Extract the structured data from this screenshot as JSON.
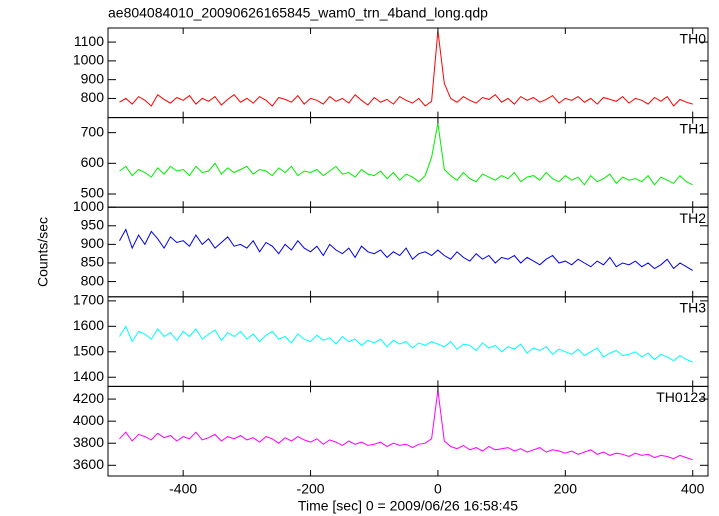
{
  "chart_data": {
    "type": "line",
    "title": "ae804084010_20090626165845_wam0_trn_4band_long.qdp",
    "xlabel": "Time [sec] 0 = 2009/06/26 16:58:45",
    "ylabel": "Counts/sec",
    "xlim": [
      -518,
      424
    ],
    "xticks": [
      -400,
      -200,
      0,
      200,
      400
    ],
    "x": [
      -500,
      -490,
      -480,
      -470,
      -460,
      -450,
      -440,
      -430,
      -420,
      -410,
      -400,
      -390,
      -380,
      -370,
      -360,
      -350,
      -340,
      -330,
      -320,
      -310,
      -300,
      -290,
      -280,
      -270,
      -260,
      -250,
      -240,
      -230,
      -220,
      -210,
      -200,
      -190,
      -180,
      -170,
      -160,
      -150,
      -140,
      -130,
      -120,
      -110,
      -100,
      -90,
      -80,
      -70,
      -60,
      -50,
      -40,
      -30,
      -20,
      -10,
      0,
      10,
      20,
      30,
      40,
      50,
      60,
      70,
      80,
      90,
      100,
      110,
      120,
      130,
      140,
      150,
      160,
      170,
      180,
      190,
      200,
      210,
      220,
      230,
      240,
      250,
      260,
      270,
      280,
      290,
      300,
      310,
      320,
      330,
      340,
      350,
      360,
      370,
      380,
      390,
      400
    ],
    "series": [
      {
        "name": "TH0",
        "color": "#ff0000",
        "ylim": [
          698,
          1175
        ],
        "yticks": [
          800,
          900,
          1000,
          1100
        ],
        "values": [
          780,
          800,
          770,
          810,
          790,
          760,
          820,
          795,
          775,
          805,
          790,
          815,
          770,
          800,
          785,
          810,
          765,
          795,
          820,
          780,
          800,
          775,
          810,
          790,
          760,
          805,
          795,
          780,
          815,
          770,
          800,
          790,
          770,
          810,
          785,
          800,
          775,
          820,
          790,
          765,
          805,
          780,
          795,
          770,
          810,
          790,
          775,
          800,
          760,
          785,
          1160,
          880,
          800,
          780,
          810,
          790,
          775,
          805,
          795,
          820,
          780,
          800,
          770,
          810,
          790,
          805,
          780,
          795,
          815,
          775,
          800,
          790,
          810,
          780,
          800,
          770,
          805,
          795,
          785,
          810,
          775,
          800,
          790,
          770,
          805,
          785,
          810,
          760,
          795,
          780,
          770
        ]
      },
      {
        "name": "TH1",
        "color": "#00ee00",
        "ylim": [
          457,
          749
        ],
        "yticks": [
          500,
          600,
          700
        ],
        "values": [
          575,
          590,
          560,
          580,
          570,
          555,
          585,
          565,
          590,
          575,
          580,
          560,
          590,
          570,
          575,
          600,
          565,
          585,
          570,
          580,
          590,
          565,
          580,
          575,
          560,
          585,
          570,
          590,
          560,
          575,
          570,
          580,
          560,
          575,
          590,
          565,
          570,
          555,
          580,
          565,
          560,
          575,
          550,
          570,
          545,
          565,
          555,
          540,
          560,
          620,
          730,
          580,
          560,
          545,
          570,
          550,
          540,
          565,
          555,
          545,
          560,
          550,
          570,
          540,
          555,
          560,
          545,
          570,
          550,
          540,
          560,
          545,
          555,
          530,
          560,
          540,
          550,
          565,
          535,
          555,
          545,
          550,
          540,
          560,
          530,
          555,
          545,
          535,
          560,
          540,
          530
        ]
      },
      {
        "name": "TH2",
        "color": "#0000ee",
        "ylim": [
          759,
          1000
        ],
        "yticks": [
          800,
          850,
          900,
          950,
          1000
        ],
        "values": [
          910,
          940,
          890,
          925,
          900,
          935,
          915,
          890,
          920,
          905,
          910,
          895,
          925,
          900,
          915,
          890,
          905,
          920,
          895,
          900,
          890,
          910,
          880,
          905,
          895,
          875,
          900,
          885,
          910,
          890,
          880,
          895,
          870,
          900,
          885,
          875,
          890,
          865,
          895,
          880,
          875,
          885,
          865,
          880,
          870,
          890,
          860,
          875,
          880,
          870,
          885,
          870,
          860,
          880,
          865,
          855,
          875,
          860,
          870,
          850,
          865,
          860,
          870,
          850,
          865,
          855,
          845,
          860,
          870,
          850,
          855,
          845,
          860,
          850,
          840,
          855,
          845,
          865,
          840,
          850,
          845,
          855,
          840,
          850,
          835,
          845,
          860,
          835,
          850,
          840,
          830
        ]
      },
      {
        "name": "TH3",
        "color": "#00ffff",
        "ylim": [
          1364,
          1716
        ],
        "yticks": [
          1400,
          1500,
          1600,
          1700
        ],
        "values": [
          1560,
          1600,
          1540,
          1580,
          1570,
          1550,
          1590,
          1560,
          1575,
          1545,
          1580,
          1560,
          1590,
          1550,
          1570,
          1585,
          1545,
          1575,
          1560,
          1580,
          1550,
          1570,
          1540,
          1565,
          1580,
          1550,
          1560,
          1535,
          1570,
          1550,
          1540,
          1565,
          1545,
          1555,
          1530,
          1560,
          1540,
          1550,
          1525,
          1545,
          1535,
          1550,
          1520,
          1545,
          1530,
          1540,
          1515,
          1535,
          1525,
          1540,
          1530,
          1520,
          1540,
          1510,
          1530,
          1525,
          1505,
          1535,
          1515,
          1525,
          1500,
          1520,
          1510,
          1530,
          1495,
          1515,
          1505,
          1520,
          1490,
          1510,
          1500,
          1490,
          1510,
          1485,
          1500,
          1515,
          1480,
          1495,
          1505,
          1485,
          1490,
          1500,
          1480,
          1495,
          1470,
          1490,
          1480,
          1465,
          1485,
          1470,
          1460
        ]
      },
      {
        "name": "TH0123",
        "color": "#ff00ff",
        "ylim": [
          3503,
          4315
        ],
        "yticks": [
          3600,
          3800,
          4000,
          4200
        ],
        "values": [
          3840,
          3900,
          3820,
          3880,
          3860,
          3830,
          3890,
          3850,
          3870,
          3820,
          3860,
          3840,
          3900,
          3830,
          3850,
          3880,
          3820,
          3860,
          3840,
          3870,
          3830,
          3850,
          3810,
          3860,
          3840,
          3800,
          3850,
          3820,
          3860,
          3830,
          3810,
          3840,
          3790,
          3830,
          3810,
          3780,
          3820,
          3790,
          3810,
          3780,
          3790,
          3810,
          3770,
          3800,
          3780,
          3790,
          3760,
          3790,
          3800,
          3840,
          4280,
          3820,
          3770,
          3750,
          3780,
          3740,
          3760,
          3730,
          3770,
          3740,
          3750,
          3760,
          3730,
          3750,
          3720,
          3740,
          3760,
          3720,
          3740,
          3730,
          3710,
          3730,
          3700,
          3720,
          3740,
          3700,
          3720,
          3690,
          3710,
          3700,
          3680,
          3710,
          3690,
          3700,
          3670,
          3690,
          3680,
          3660,
          3690,
          3670,
          3650
        ]
      }
    ]
  }
}
